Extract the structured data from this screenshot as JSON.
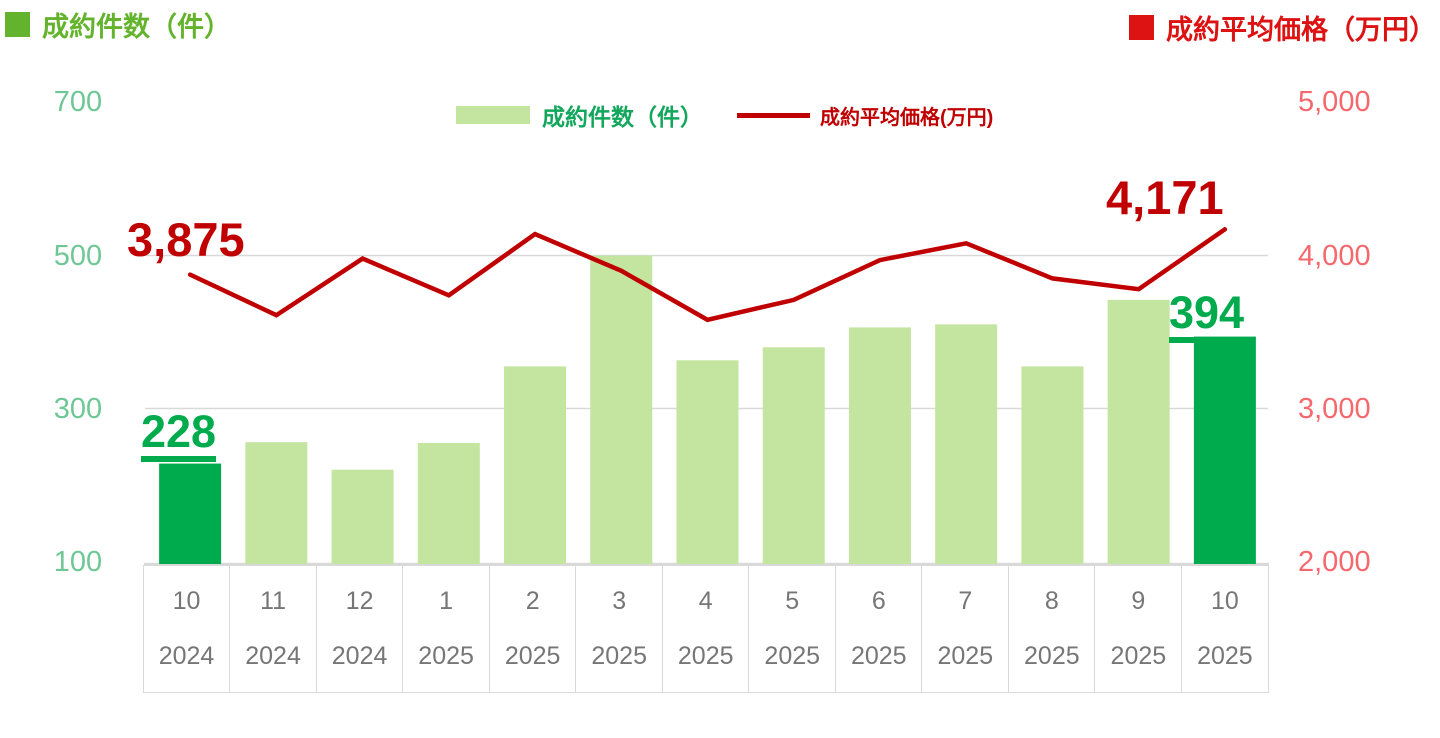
{
  "header": {
    "left_title": "成約件数（件）",
    "right_title": "成約平均価格（万円）"
  },
  "legend": {
    "bar_label": "成約件数（件）",
    "line_label": "成約平均価格(万円)"
  },
  "colors": {
    "bar_light": "#c3e5a0",
    "bar_highlight": "#00ab4e",
    "line": "#c00000",
    "grid": "#d9d9d9",
    "title_green": "#63b42c",
    "title_red": "#dd1212",
    "left_tick_green": "#6fc795",
    "right_tick_pink": "#f4686e",
    "label_green": "#00ab4e",
    "label_red": "#c00000",
    "x_label_gray": "#767676"
  },
  "chart_data": {
    "type": "bar+line combo",
    "categories_months": [
      "10",
      "11",
      "12",
      "1",
      "2",
      "3",
      "4",
      "5",
      "6",
      "7",
      "8",
      "9",
      "10"
    ],
    "categories_years": [
      "2024",
      "2024",
      "2024",
      "2025",
      "2025",
      "2025",
      "2025",
      "2025",
      "2025",
      "2025",
      "2025",
      "2025",
      "2025"
    ],
    "series": [
      {
        "name": "成約件数(件)",
        "type": "bar",
        "axis": "left",
        "values": [
          228,
          256,
          220,
          255,
          355,
          500,
          363,
          380,
          406,
          410,
          355,
          442,
          394
        ],
        "highlight_indices": [
          0,
          12
        ]
      },
      {
        "name": "成約平均価格(万円)",
        "type": "line",
        "axis": "right",
        "values": [
          3875,
          3610,
          3980,
          3740,
          4140,
          3900,
          3580,
          3710,
          3970,
          4080,
          3850,
          3780,
          4171
        ]
      }
    ],
    "left_axis": {
      "min": 100,
      "max": 700,
      "tick_labels": [
        "700",
        "500",
        "300",
        "100"
      ]
    },
    "right_axis": {
      "min": 2000,
      "max": 5000,
      "tick_labels": [
        "5,000",
        "4,000",
        "3,000",
        "2,000"
      ]
    },
    "grid": "horizontal lines at 500 and 300 (left axis) only",
    "legend_position": "top-center",
    "annotations": {
      "first_bar": "228",
      "last_bar": "394",
      "first_price": "3,875",
      "last_price": "4,171"
    }
  }
}
